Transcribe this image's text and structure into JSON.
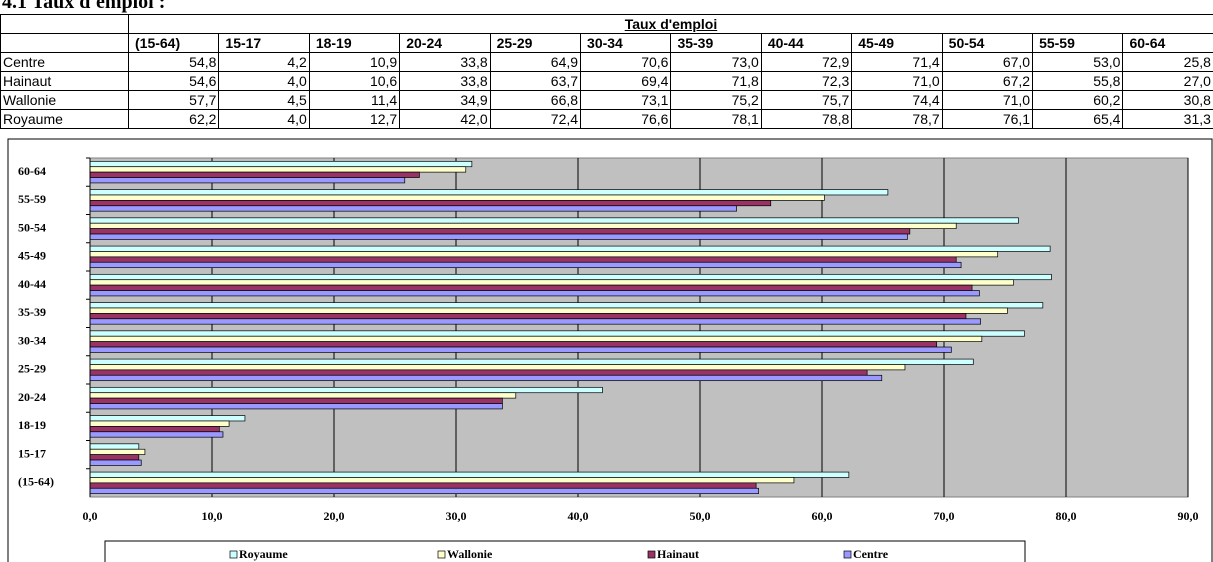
{
  "heading": "4.1 Taux d'emploi :",
  "table": {
    "title": "Taux d'emploi",
    "columns": [
      "(15-64)",
      "15-17",
      "18-19",
      "20-24",
      "25-29",
      "30-34",
      "35-39",
      "40-44",
      "45-49",
      "50-54",
      "55-59",
      "60-64"
    ],
    "rows": [
      {
        "label": "Centre",
        "cells": [
          "54,8",
          "4,2",
          "10,9",
          "33,8",
          "64,9",
          "70,6",
          "73,0",
          "72,9",
          "71,4",
          "67,0",
          "53,0",
          "25,8"
        ]
      },
      {
        "label": "Hainaut",
        "cells": [
          "54,6",
          "4,0",
          "10,6",
          "33,8",
          "63,7",
          "69,4",
          "71,8",
          "72,3",
          "71,0",
          "67,2",
          "55,8",
          "27,0"
        ]
      },
      {
        "label": "Wallonie",
        "cells": [
          "57,7",
          "4,5",
          "11,4",
          "34,9",
          "66,8",
          "73,1",
          "75,2",
          "75,7",
          "74,4",
          "71,0",
          "60,2",
          "30,8"
        ]
      },
      {
        "label": "Royaume",
        "cells": [
          "62,2",
          "4,0",
          "12,7",
          "42,0",
          "72,4",
          "76,6",
          "78,1",
          "78,8",
          "78,7",
          "76,1",
          "65,4",
          "31,3"
        ]
      }
    ]
  },
  "chart_data": {
    "type": "hbar",
    "categories": [
      "(15-64)",
      "15-17",
      "18-19",
      "20-24",
      "25-29",
      "30-34",
      "35-39",
      "40-44",
      "45-49",
      "50-54",
      "55-59",
      "60-64"
    ],
    "series": [
      {
        "name": "Royaume",
        "color": "#ccffff",
        "values": [
          62.2,
          4.0,
          12.7,
          42.0,
          72.4,
          76.6,
          78.1,
          78.8,
          78.7,
          76.1,
          65.4,
          31.3
        ]
      },
      {
        "name": "Wallonie",
        "color": "#ffffcc",
        "values": [
          57.7,
          4.5,
          11.4,
          34.9,
          66.8,
          73.1,
          75.2,
          75.7,
          74.4,
          71.0,
          60.2,
          30.8
        ]
      },
      {
        "name": "Hainaut",
        "color": "#993366",
        "values": [
          54.6,
          4.0,
          10.6,
          33.8,
          63.7,
          69.4,
          71.8,
          72.3,
          71.0,
          67.2,
          55.8,
          27.0
        ]
      },
      {
        "name": "Centre",
        "color": "#9999ff",
        "values": [
          54.8,
          4.2,
          10.9,
          33.8,
          64.9,
          70.6,
          73.0,
          72.9,
          71.4,
          67.0,
          53.0,
          25.8
        ]
      }
    ],
    "xlim": [
      0,
      90
    ],
    "xticks": [
      {
        "value": 0,
        "label": "0,0"
      },
      {
        "value": 10,
        "label": "10,0"
      },
      {
        "value": 20,
        "label": "20,0"
      },
      {
        "value": 30,
        "label": "30,0"
      },
      {
        "value": 40,
        "label": "40,0"
      },
      {
        "value": 50,
        "label": "50,0"
      },
      {
        "value": 60,
        "label": "60,0"
      },
      {
        "value": 70,
        "label": "70,0"
      },
      {
        "value": 80,
        "label": "80,0"
      },
      {
        "value": 90,
        "label": "90,0"
      }
    ],
    "plot_background": "#c0c0c0",
    "grid": true,
    "legend": "bottom"
  }
}
